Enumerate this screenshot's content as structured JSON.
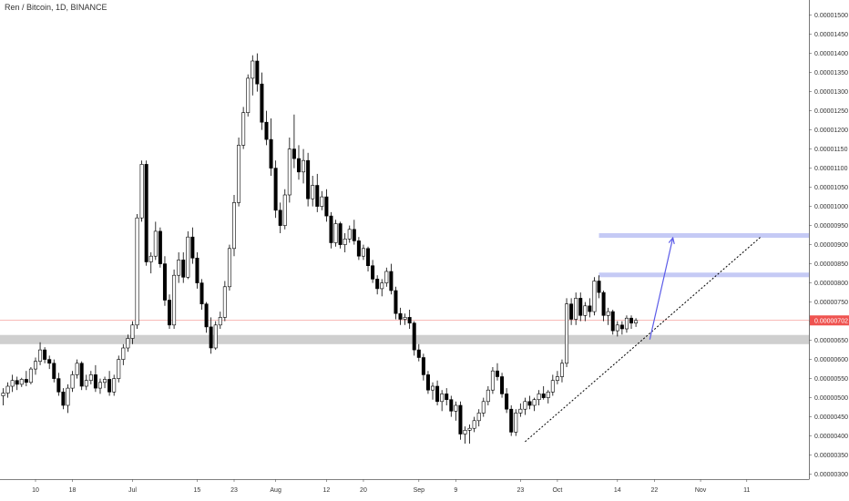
{
  "header": {
    "symbol_title": "Ren / Bitcoin, 1D, BINANCE"
  },
  "chart_data": {
    "type": "candlestick",
    "title": "Ren / Bitcoin, 1D, BINANCE",
    "y_ticks": [
      "0.00001500",
      "0.00001450",
      "0.00001400",
      "0.00001350",
      "0.00001300",
      "0.00001250",
      "0.00001200",
      "0.00001150",
      "0.00001100",
      "0.00001050",
      "0.00001000",
      "0.00000950",
      "0.00000900",
      "0.00000850",
      "0.00000800",
      "0.00000750",
      "0.00000700",
      "0.00000650",
      "0.00000600",
      "0.00000550",
      "0.00000500",
      "0.00000450",
      "0.00000400",
      "0.00000350",
      "0.00000300"
    ],
    "y_tick_values": [
      1500,
      1450,
      1400,
      1350,
      1300,
      1250,
      1200,
      1150,
      1100,
      1050,
      1000,
      950,
      900,
      850,
      800,
      750,
      700,
      650,
      600,
      550,
      500,
      450,
      400,
      350,
      300
    ],
    "y_scale_note": "values in units of 1e-8 BTC",
    "ylim": [
      283,
      1512
    ],
    "x_ticks": [
      {
        "label": "10",
        "index": 7
      },
      {
        "label": "18",
        "index": 15
      },
      {
        "label": "Jul",
        "index": 28
      },
      {
        "label": "15",
        "index": 42
      },
      {
        "label": "23",
        "index": 50
      },
      {
        "label": "Aug",
        "index": 59
      },
      {
        "label": "12",
        "index": 70
      },
      {
        "label": "20",
        "index": 78
      },
      {
        "label": "Sep",
        "index": 90
      },
      {
        "label": "9",
        "index": 98
      },
      {
        "label": "23",
        "index": 112
      },
      {
        "label": "Oct",
        "index": 120
      },
      {
        "label": "14",
        "index": 133
      },
      {
        "label": "22",
        "index": 141
      },
      {
        "label": "Nov",
        "index": 151
      },
      {
        "label": "11",
        "index": 161
      }
    ],
    "current_price": {
      "label": "0.00000702",
      "value": 702,
      "color": "#ef5350"
    },
    "zones": [
      {
        "kind": "support",
        "low": 640,
        "high": 664,
        "color": "#cfcfcf"
      },
      {
        "kind": "resistance",
        "low": 918,
        "high": 930,
        "color": "#c5caf5"
      },
      {
        "kind": "resistance",
        "low": 815,
        "high": 827,
        "color": "#c5caf5"
      }
    ],
    "trendline": {
      "start": {
        "index": 113,
        "value": 385
      },
      "end": {
        "index": 164,
        "value": 920
      },
      "style": "dotted",
      "color": "#000000"
    },
    "arrow": {
      "start": {
        "index": 140,
        "value": 652
      },
      "end": {
        "index": 145,
        "value": 918
      },
      "color": "#5b5be8"
    },
    "candles": [
      [
        505,
        525,
        480,
        512
      ],
      [
        512,
        540,
        500,
        530
      ],
      [
        530,
        560,
        515,
        545
      ],
      [
        545,
        555,
        520,
        535
      ],
      [
        535,
        552,
        528,
        548
      ],
      [
        548,
        570,
        530,
        540
      ],
      [
        540,
        580,
        535,
        575
      ],
      [
        575,
        605,
        560,
        595
      ],
      [
        595,
        645,
        585,
        625
      ],
      [
        625,
        632,
        590,
        600
      ],
      [
        600,
        610,
        575,
        590
      ],
      [
        590,
        600,
        540,
        550
      ],
      [
        550,
        565,
        505,
        515
      ],
      [
        515,
        525,
        470,
        480
      ],
      [
        480,
        535,
        460,
        525
      ],
      [
        525,
        570,
        515,
        560
      ],
      [
        560,
        600,
        550,
        590
      ],
      [
        590,
        595,
        520,
        530
      ],
      [
        530,
        560,
        520,
        545
      ],
      [
        545,
        570,
        535,
        560
      ],
      [
        560,
        585,
        515,
        525
      ],
      [
        525,
        550,
        510,
        540
      ],
      [
        540,
        555,
        525,
        548
      ],
      [
        548,
        570,
        505,
        515
      ],
      [
        515,
        560,
        505,
        550
      ],
      [
        550,
        610,
        540,
        600
      ],
      [
        600,
        640,
        585,
        630
      ],
      [
        630,
        665,
        620,
        655
      ],
      [
        655,
        700,
        640,
        690
      ],
      [
        690,
        980,
        680,
        970
      ],
      [
        970,
        1120,
        960,
        1110
      ],
      [
        1110,
        1120,
        845,
        855
      ],
      [
        855,
        880,
        825,
        870
      ],
      [
        870,
        960,
        860,
        935
      ],
      [
        935,
        945,
        840,
        850
      ],
      [
        850,
        870,
        740,
        755
      ],
      [
        755,
        770,
        680,
        690
      ],
      [
        690,
        835,
        680,
        820
      ],
      [
        820,
        880,
        800,
        860
      ],
      [
        860,
        880,
        800,
        815
      ],
      [
        815,
        935,
        810,
        920
      ],
      [
        920,
        945,
        850,
        865
      ],
      [
        865,
        880,
        785,
        800
      ],
      [
        800,
        810,
        730,
        745
      ],
      [
        745,
        750,
        670,
        685
      ],
      [
        685,
        710,
        615,
        630
      ],
      [
        630,
        700,
        625,
        690
      ],
      [
        690,
        725,
        680,
        710
      ],
      [
        710,
        805,
        700,
        790
      ],
      [
        790,
        900,
        780,
        890
      ],
      [
        890,
        1030,
        870,
        1010
      ],
      [
        1010,
        1180,
        1000,
        1160
      ],
      [
        1160,
        1260,
        1150,
        1245
      ],
      [
        1245,
        1345,
        1235,
        1335
      ],
      [
        1335,
        1395,
        1290,
        1380
      ],
      [
        1380,
        1400,
        1300,
        1320
      ],
      [
        1320,
        1350,
        1200,
        1220
      ],
      [
        1220,
        1250,
        1160,
        1175
      ],
      [
        1175,
        1230,
        1080,
        1100
      ],
      [
        1100,
        1120,
        970,
        990
      ],
      [
        990,
        1010,
        930,
        950
      ],
      [
        950,
        1045,
        940,
        1030
      ],
      [
        1030,
        1180,
        1010,
        1150
      ],
      [
        1150,
        1240,
        1100,
        1125
      ],
      [
        1125,
        1160,
        1070,
        1090
      ],
      [
        1090,
        1150,
        1060,
        1120
      ],
      [
        1120,
        1140,
        1000,
        1020
      ],
      [
        1020,
        1080,
        1000,
        1055
      ],
      [
        1055,
        1085,
        985,
        1000
      ],
      [
        1000,
        1040,
        990,
        1025
      ],
      [
        1025,
        1045,
        960,
        975
      ],
      [
        975,
        985,
        890,
        905
      ],
      [
        905,
        965,
        895,
        955
      ],
      [
        955,
        960,
        890,
        900
      ],
      [
        900,
        930,
        880,
        915
      ],
      [
        915,
        950,
        905,
        940
      ],
      [
        940,
        965,
        900,
        910
      ],
      [
        910,
        920,
        860,
        870
      ],
      [
        870,
        900,
        860,
        890
      ],
      [
        890,
        895,
        830,
        845
      ],
      [
        845,
        860,
        800,
        810
      ],
      [
        810,
        820,
        770,
        785
      ],
      [
        785,
        810,
        765,
        800
      ],
      [
        800,
        840,
        790,
        830
      ],
      [
        830,
        850,
        770,
        780
      ],
      [
        780,
        790,
        705,
        720
      ],
      [
        720,
        735,
        690,
        705
      ],
      [
        705,
        720,
        690,
        710
      ],
      [
        710,
        730,
        680,
        695
      ],
      [
        695,
        700,
        610,
        625
      ],
      [
        625,
        640,
        595,
        605
      ],
      [
        605,
        615,
        545,
        560
      ],
      [
        560,
        570,
        510,
        520
      ],
      [
        520,
        540,
        495,
        530
      ],
      [
        530,
        545,
        480,
        490
      ],
      [
        490,
        520,
        465,
        510
      ],
      [
        510,
        525,
        480,
        495
      ],
      [
        495,
        505,
        450,
        465
      ],
      [
        465,
        490,
        440,
        480
      ],
      [
        480,
        490,
        390,
        405
      ],
      [
        405,
        425,
        380,
        415
      ],
      [
        415,
        430,
        380,
        420
      ],
      [
        420,
        450,
        410,
        440
      ],
      [
        440,
        470,
        425,
        460
      ],
      [
        460,
        500,
        450,
        490
      ],
      [
        490,
        530,
        480,
        520
      ],
      [
        520,
        580,
        510,
        570
      ],
      [
        570,
        590,
        545,
        555
      ],
      [
        555,
        565,
        500,
        510
      ],
      [
        510,
        525,
        460,
        470
      ],
      [
        470,
        480,
        400,
        410
      ],
      [
        410,
        470,
        400,
        460
      ],
      [
        460,
        485,
        450,
        470
      ],
      [
        470,
        500,
        455,
        490
      ],
      [
        490,
        505,
        470,
        480
      ],
      [
        480,
        500,
        465,
        495
      ],
      [
        495,
        520,
        480,
        510
      ],
      [
        510,
        530,
        495,
        500
      ],
      [
        500,
        520,
        485,
        515
      ],
      [
        515,
        560,
        505,
        545
      ],
      [
        545,
        570,
        535,
        555
      ],
      [
        555,
        600,
        540,
        590
      ],
      [
        590,
        760,
        580,
        745
      ],
      [
        745,
        760,
        690,
        705
      ],
      [
        705,
        775,
        690,
        760
      ],
      [
        760,
        775,
        700,
        715
      ],
      [
        715,
        750,
        700,
        740
      ],
      [
        740,
        760,
        710,
        725
      ],
      [
        725,
        815,
        715,
        805
      ],
      [
        805,
        820,
        760,
        775
      ],
      [
        775,
        780,
        700,
        715
      ],
      [
        715,
        735,
        690,
        725
      ],
      [
        725,
        730,
        665,
        675
      ],
      [
        675,
        700,
        660,
        690
      ],
      [
        690,
        700,
        665,
        680
      ],
      [
        680,
        715,
        670,
        708
      ],
      [
        708,
        715,
        680,
        695
      ],
      [
        695,
        708,
        685,
        702
      ]
    ]
  }
}
